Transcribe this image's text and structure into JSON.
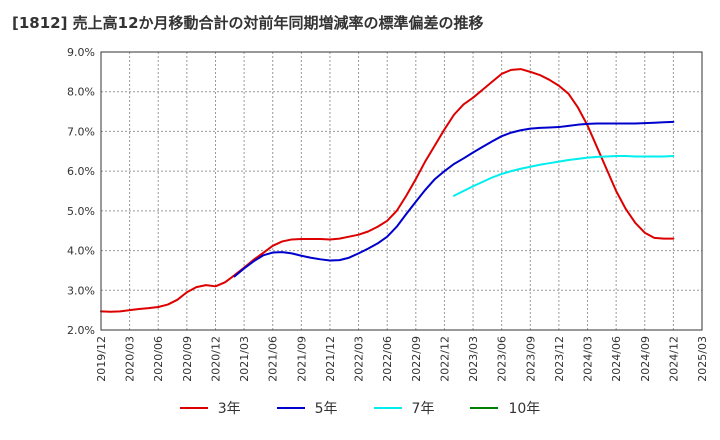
{
  "chart_data": {
    "type": "line",
    "title": "[1812]  売上高12か月移動合計の対前年同期増減率の標準偏差の推移",
    "xlabel": "",
    "ylabel": "",
    "ylim": [
      2.0,
      9.0
    ],
    "y_ticks": [
      "2.0%",
      "3.0%",
      "4.0%",
      "5.0%",
      "6.0%",
      "7.0%",
      "8.0%",
      "9.0%"
    ],
    "x_ticks": [
      "2019/12",
      "2020/03",
      "2020/06",
      "2020/09",
      "2020/12",
      "2021/03",
      "2021/06",
      "2021/09",
      "2021/12",
      "2022/03",
      "2022/06",
      "2022/09",
      "2022/12",
      "2023/03",
      "2023/06",
      "2023/09",
      "2023/12",
      "2024/03",
      "2024/06",
      "2024/09",
      "2024/12",
      "2025/03"
    ],
    "grid": true,
    "legend_position": "bottom",
    "series": [
      {
        "name": "3年",
        "color": "#dd0000",
        "x": [
          "2019/12",
          "2020/01",
          "2020/02",
          "2020/03",
          "2020/04",
          "2020/05",
          "2020/06",
          "2020/07",
          "2020/08",
          "2020/09",
          "2020/10",
          "2020/11",
          "2020/12",
          "2021/01",
          "2021/02",
          "2021/03",
          "2021/04",
          "2021/05",
          "2021/06",
          "2021/07",
          "2021/08",
          "2021/09",
          "2021/10",
          "2021/11",
          "2021/12",
          "2022/01",
          "2022/02",
          "2022/03",
          "2022/04",
          "2022/05",
          "2022/06",
          "2022/07",
          "2022/08",
          "2022/09",
          "2022/10",
          "2022/11",
          "2022/12",
          "2023/01",
          "2023/02",
          "2023/03",
          "2023/04",
          "2023/05",
          "2023/06",
          "2023/07",
          "2023/08",
          "2023/09",
          "2023/10",
          "2023/11",
          "2023/12",
          "2024/01",
          "2024/02",
          "2024/03",
          "2024/04",
          "2024/05",
          "2024/06",
          "2024/07",
          "2024/08",
          "2024/09",
          "2024/10",
          "2024/11",
          "2024/12"
        ],
        "values": [
          2.47,
          2.46,
          2.47,
          2.5,
          2.53,
          2.55,
          2.58,
          2.64,
          2.76,
          2.95,
          3.08,
          3.13,
          3.1,
          3.2,
          3.38,
          3.57,
          3.77,
          3.94,
          4.12,
          4.23,
          4.28,
          4.29,
          4.29,
          4.29,
          4.28,
          4.3,
          4.35,
          4.4,
          4.48,
          4.6,
          4.75,
          5.0,
          5.38,
          5.8,
          6.25,
          6.65,
          7.05,
          7.42,
          7.68,
          7.85,
          8.05,
          8.25,
          8.45,
          8.55,
          8.57,
          8.5,
          8.42,
          8.3,
          8.15,
          7.95,
          7.6,
          7.15,
          6.6,
          6.05,
          5.5,
          5.05,
          4.7,
          4.45,
          4.32,
          4.3,
          4.3
        ]
      },
      {
        "name": "5年",
        "color": "#0000cc",
        "x": [
          "2021/02",
          "2021/03",
          "2021/04",
          "2021/05",
          "2021/06",
          "2021/07",
          "2021/08",
          "2021/09",
          "2021/10",
          "2021/11",
          "2021/12",
          "2022/01",
          "2022/02",
          "2022/03",
          "2022/04",
          "2022/05",
          "2022/06",
          "2022/07",
          "2022/08",
          "2022/09",
          "2022/10",
          "2022/11",
          "2022/12",
          "2023/01",
          "2023/02",
          "2023/03",
          "2023/04",
          "2023/05",
          "2023/06",
          "2023/07",
          "2023/08",
          "2023/09",
          "2023/10",
          "2023/11",
          "2023/12",
          "2024/01",
          "2024/02",
          "2024/03",
          "2024/04",
          "2024/05",
          "2024/06",
          "2024/07",
          "2024/08",
          "2024/09",
          "2024/10",
          "2024/11",
          "2024/12"
        ],
        "values": [
          3.35,
          3.55,
          3.73,
          3.88,
          3.95,
          3.96,
          3.93,
          3.87,
          3.82,
          3.78,
          3.75,
          3.76,
          3.82,
          3.93,
          4.05,
          4.18,
          4.35,
          4.6,
          4.92,
          5.23,
          5.53,
          5.8,
          6.0,
          6.18,
          6.32,
          6.47,
          6.61,
          6.75,
          6.88,
          6.97,
          7.03,
          7.07,
          7.09,
          7.1,
          7.11,
          7.14,
          7.17,
          7.19,
          7.2,
          7.2,
          7.2,
          7.2,
          7.2,
          7.21,
          7.22,
          7.23,
          7.24
        ]
      },
      {
        "name": "7年",
        "color": "#00eeee",
        "x": [
          "2023/01",
          "2023/02",
          "2023/03",
          "2023/04",
          "2023/05",
          "2023/06",
          "2023/07",
          "2023/08",
          "2023/09",
          "2023/10",
          "2023/11",
          "2023/12",
          "2024/01",
          "2024/02",
          "2024/03",
          "2024/04",
          "2024/05",
          "2024/06",
          "2024/07",
          "2024/08",
          "2024/09",
          "2024/10",
          "2024/11",
          "2024/12"
        ],
        "values": [
          5.38,
          5.5,
          5.62,
          5.73,
          5.84,
          5.93,
          6.0,
          6.06,
          6.11,
          6.16,
          6.2,
          6.24,
          6.28,
          6.31,
          6.34,
          6.36,
          6.37,
          6.38,
          6.38,
          6.37,
          6.37,
          6.37,
          6.37,
          6.38
        ]
      },
      {
        "name": "10年",
        "color": "#008000",
        "x": [],
        "values": []
      }
    ]
  }
}
